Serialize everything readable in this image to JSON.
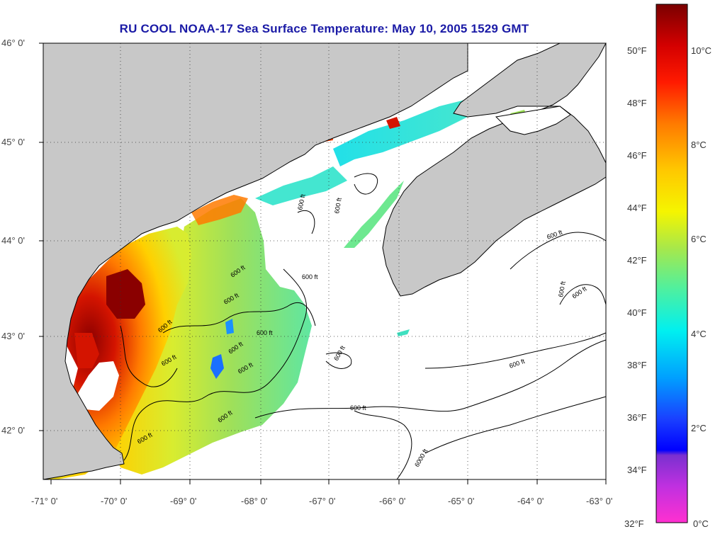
{
  "title": "RU COOL  NOAA-17  Sea Surface Temperature:  May 10, 2005 1529 GMT",
  "lat_labels": [
    "46° 0'",
    "45° 0'",
    "44° 0'",
    "43° 0'",
    "42° 0'"
  ],
  "lon_labels": [
    "-71° 0'",
    "-70° 0'",
    "-69° 0'",
    "-68° 0'",
    "-67° 0'",
    "-66° 0'",
    "-65° 0'",
    "-64° 0'",
    "-63° 0'"
  ],
  "colorbar_f_labels": [
    "50°F",
    "48°F",
    "46°F",
    "44°F",
    "42°F",
    "40°F",
    "38°F",
    "36°F",
    "34°F",
    "32°F"
  ],
  "colorbar_c_labels": [
    "10°C",
    "8°C",
    "6°C",
    "4°C",
    "2°C",
    "0°C"
  ],
  "contour_label": "600 ft",
  "contour_label_deep": "6000 ft",
  "colors": {
    "land": "#c8c8c8",
    "cloud": "#ffffff",
    "coast": "#000000",
    "title": "#1a1aa6"
  }
}
